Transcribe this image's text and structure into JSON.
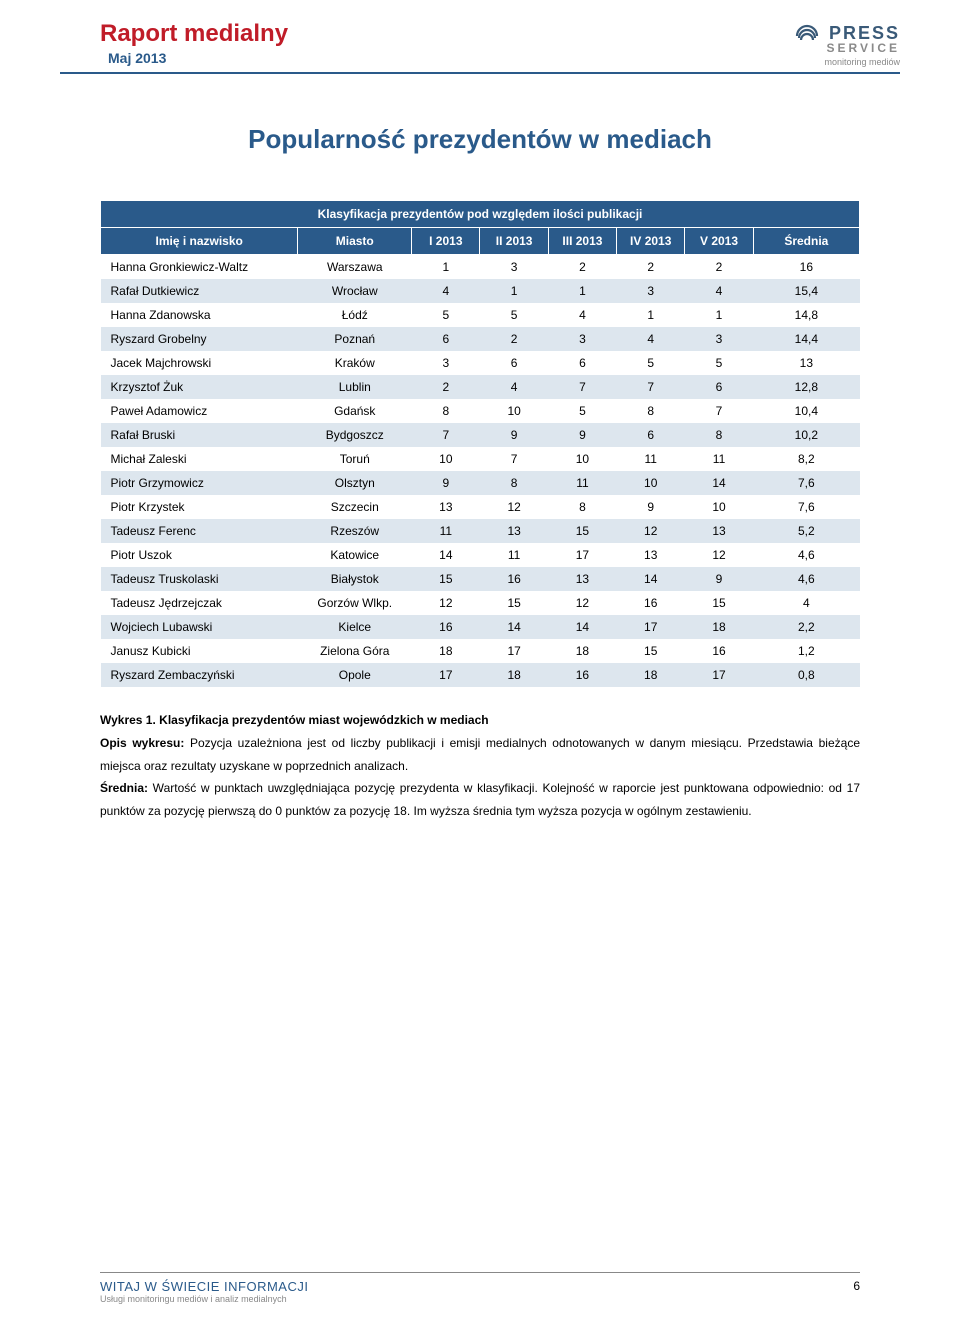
{
  "header": {
    "title": "Raport medialny",
    "subtitle": "Maj 2013"
  },
  "logo": {
    "press": "PRESS",
    "service": "SERVICE",
    "tagline": "monitoring mediów"
  },
  "main_title": "Popularność prezydentów w mediach",
  "table": {
    "caption": "Klasyfikacja prezydentów pod względem ilości publikacji",
    "columns": [
      "Imię i nazwisko",
      "Miasto",
      "I 2013",
      "II 2013",
      "III 2013",
      "IV 2013",
      "V 2013",
      "Średnia"
    ],
    "rows": [
      [
        "Hanna Gronkiewicz-Waltz",
        "Warszawa",
        "1",
        "3",
        "2",
        "2",
        "2",
        "16"
      ],
      [
        "Rafał Dutkiewicz",
        "Wrocław",
        "4",
        "1",
        "1",
        "3",
        "4",
        "15,4"
      ],
      [
        "Hanna Zdanowska",
        "Łódź",
        "5",
        "5",
        "4",
        "1",
        "1",
        "14,8"
      ],
      [
        "Ryszard Grobelny",
        "Poznań",
        "6",
        "2",
        "3",
        "4",
        "3",
        "14,4"
      ],
      [
        "Jacek Majchrowski",
        "Kraków",
        "3",
        "6",
        "6",
        "5",
        "5",
        "13"
      ],
      [
        "Krzysztof Żuk",
        "Lublin",
        "2",
        "4",
        "7",
        "7",
        "6",
        "12,8"
      ],
      [
        "Paweł Adamowicz",
        "Gdańsk",
        "8",
        "10",
        "5",
        "8",
        "7",
        "10,4"
      ],
      [
        "Rafał Bruski",
        "Bydgoszcz",
        "7",
        "9",
        "9",
        "6",
        "8",
        "10,2"
      ],
      [
        "Michał Zaleski",
        "Toruń",
        "10",
        "7",
        "10",
        "11",
        "11",
        "8,2"
      ],
      [
        "Piotr Grzymowicz",
        "Olsztyn",
        "9",
        "8",
        "11",
        "10",
        "14",
        "7,6"
      ],
      [
        "Piotr Krzystek",
        "Szczecin",
        "13",
        "12",
        "8",
        "9",
        "10",
        "7,6"
      ],
      [
        "Tadeusz Ferenc",
        "Rzeszów",
        "11",
        "13",
        "15",
        "12",
        "13",
        "5,2"
      ],
      [
        "Piotr Uszok",
        "Katowice",
        "14",
        "11",
        "17",
        "13",
        "12",
        "4,6"
      ],
      [
        "Tadeusz Truskolaski",
        "Białystok",
        "15",
        "16",
        "13",
        "14",
        "9",
        "4,6"
      ],
      [
        "Tadeusz Jędrzejczak",
        "Gorzów Wlkp.",
        "12",
        "15",
        "12",
        "16",
        "15",
        "4"
      ],
      [
        "Wojciech Lubawski",
        "Kielce",
        "16",
        "14",
        "14",
        "17",
        "18",
        "2,2"
      ],
      [
        "Janusz Kubicki",
        "Zielona Góra",
        "18",
        "17",
        "18",
        "15",
        "16",
        "1,2"
      ],
      [
        "Ryszard Zembaczyński",
        "Opole",
        "17",
        "18",
        "16",
        "18",
        "17",
        "0,8"
      ]
    ],
    "col_widths": [
      "26%",
      "15%",
      "9%",
      "9%",
      "9%",
      "9%",
      "9%",
      "14%"
    ],
    "header_bg": "#2a5a8a",
    "header_fg": "#ffffff",
    "row_odd_bg": "#ffffff",
    "row_even_bg": "#dde6ee"
  },
  "description": {
    "line1_label": "Wykres 1. Klasyfikacja prezydentów miast wojewódzkich w mediach",
    "line2_label": "Opis wykresu:",
    "line2_rest": " Pozycja uzależniona jest od liczby publikacji i emisji medialnych odnotowanych w danym miesiącu. Przedstawia bieżące miejsca oraz rezultaty uzyskane w poprzednich analizach.",
    "line3_label": "Średnia:",
    "line3_rest": " Wartość w punktach uwzględniająca pozycję prezydenta w klasyfikacji. Kolejność w raporcie jest punktowana odpowiednio: od 17 punktów za pozycję pierwszą do 0 punktów za pozycję 18. Im wyższa średnia tym wyższa pozycja w ogólnym zestawieniu."
  },
  "footer": {
    "main": "WITAJ W ŚWIECIE INFORMACJI",
    "sub": "Usługi monitoringu mediów i analiz medialnych",
    "page": "6"
  },
  "colors": {
    "brand_red": "#c01c28",
    "brand_blue": "#2a5a8a",
    "grey": "#888888"
  }
}
